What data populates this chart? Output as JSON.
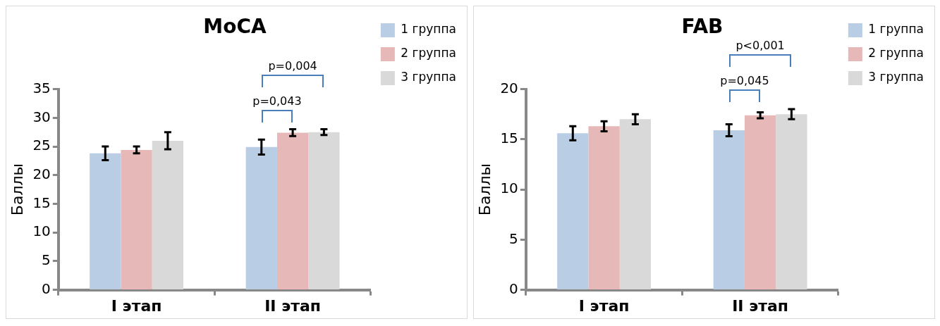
{
  "chart_data": [
    {
      "type": "bar",
      "title": "MoCA",
      "ylabel": "Баллы",
      "categories": [
        "I этап",
        "II этап"
      ],
      "series": [
        {
          "name": "1 группа",
          "color": "#b9cde5",
          "values": [
            23.8,
            24.9
          ],
          "errors": [
            1.2,
            1.3
          ]
        },
        {
          "name": "2 группа",
          "color": "#e6b9b8",
          "values": [
            24.4,
            27.4
          ],
          "errors": [
            0.6,
            0.6
          ]
        },
        {
          "name": "3 группа",
          "color": "#d9d9d9",
          "values": [
            26.0,
            27.5
          ],
          "errors": [
            1.5,
            0.5
          ]
        }
      ],
      "ylim": [
        0,
        35
      ],
      "yticks": [
        0,
        5,
        10,
        15,
        20,
        25,
        30,
        35
      ],
      "grid": false,
      "legend": "top right",
      "annotations": [
        "p=0,043",
        "p=0,004"
      ]
    },
    {
      "type": "bar",
      "title": "FAB",
      "ylabel": "Баллы",
      "categories": [
        "I этап",
        "II этап"
      ],
      "series": [
        {
          "name": "1 группа",
          "color": "#b9cde5",
          "values": [
            15.6,
            15.9
          ],
          "errors": [
            0.7,
            0.6
          ]
        },
        {
          "name": "2 группа",
          "color": "#e6b9b8",
          "values": [
            16.3,
            17.4
          ],
          "errors": [
            0.5,
            0.3
          ]
        },
        {
          "name": "3 группа",
          "color": "#d9d9d9",
          "values": [
            17.0,
            17.5
          ],
          "errors": [
            0.5,
            0.5
          ]
        }
      ],
      "ylim": [
        0,
        20
      ],
      "yticks": [
        0,
        5,
        10,
        15,
        20
      ],
      "grid": false,
      "legend": "top right",
      "annotations": [
        "p=0,045",
        "p<0,001"
      ]
    }
  ]
}
